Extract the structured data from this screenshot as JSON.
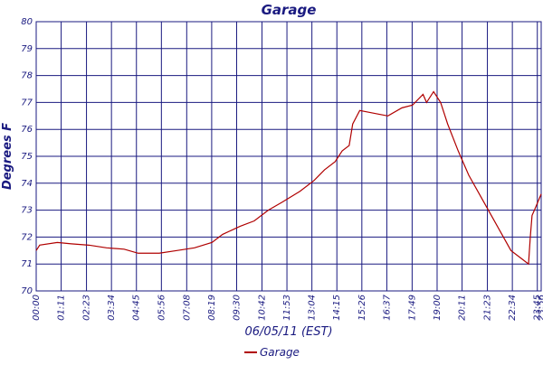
{
  "chart_data": {
    "type": "line",
    "title": "Garage",
    "xlabel": "06/05/11 (EST)",
    "ylabel": "Degrees F",
    "x": [
      0,
      10,
      60,
      100,
      150,
      200,
      250,
      290,
      350,
      400,
      450,
      500,
      530,
      580,
      620,
      660,
      700,
      750,
      790,
      820,
      850,
      870,
      890,
      900,
      920,
      960,
      1000,
      1040,
      1070,
      1100,
      1110,
      1130,
      1150,
      1170,
      1200,
      1230,
      1260,
      1290,
      1320,
      1350,
      1380,
      1400,
      1405,
      1410,
      1420,
      1436
    ],
    "series": [
      {
        "name": "Garage",
        "color": "#b00000",
        "values": [
          71.5,
          71.7,
          71.8,
          71.75,
          71.7,
          71.6,
          71.55,
          71.4,
          71.4,
          71.5,
          71.6,
          71.8,
          72.1,
          72.4,
          72.6,
          73.0,
          73.3,
          73.7,
          74.1,
          74.5,
          74.8,
          75.2,
          75.4,
          76.2,
          76.7,
          76.6,
          76.5,
          76.8,
          76.9,
          77.3,
          77.0,
          77.4,
          77.0,
          76.2,
          75.2,
          74.3,
          73.6,
          72.9,
          72.2,
          71.5,
          71.2,
          71.0,
          72.0,
          72.8,
          73.1,
          73.6
        ]
      }
    ],
    "xlim": [
      0,
      1436
    ],
    "xticks": [
      {
        "value": 0,
        "label": "00:00"
      },
      {
        "value": 71,
        "label": "01:11"
      },
      {
        "value": 143,
        "label": "02:23"
      },
      {
        "value": 214,
        "label": "03:34"
      },
      {
        "value": 285,
        "label": "04:45"
      },
      {
        "value": 356,
        "label": "05:56"
      },
      {
        "value": 428,
        "label": "07:08"
      },
      {
        "value": 499,
        "label": "08:19"
      },
      {
        "value": 570,
        "label": "09:30"
      },
      {
        "value": 642,
        "label": "10:42"
      },
      {
        "value": 713,
        "label": "11:53"
      },
      {
        "value": 784,
        "label": "13:04"
      },
      {
        "value": 855,
        "label": "14:15"
      },
      {
        "value": 926,
        "label": "15:26"
      },
      {
        "value": 997,
        "label": "16:37"
      },
      {
        "value": 1069,
        "label": "17:49"
      },
      {
        "value": 1140,
        "label": "19:00"
      },
      {
        "value": 1211,
        "label": "20:11"
      },
      {
        "value": 1283,
        "label": "21:23"
      },
      {
        "value": 1354,
        "label": "22:34"
      },
      {
        "value": 1425,
        "label": "23:45"
      },
      {
        "value": 1436,
        "label": "23:56"
      }
    ],
    "ylim": [
      70,
      80
    ],
    "yticks": [
      70,
      71,
      72,
      73,
      74,
      75,
      76,
      77,
      78,
      79,
      80
    ],
    "grid": true
  }
}
